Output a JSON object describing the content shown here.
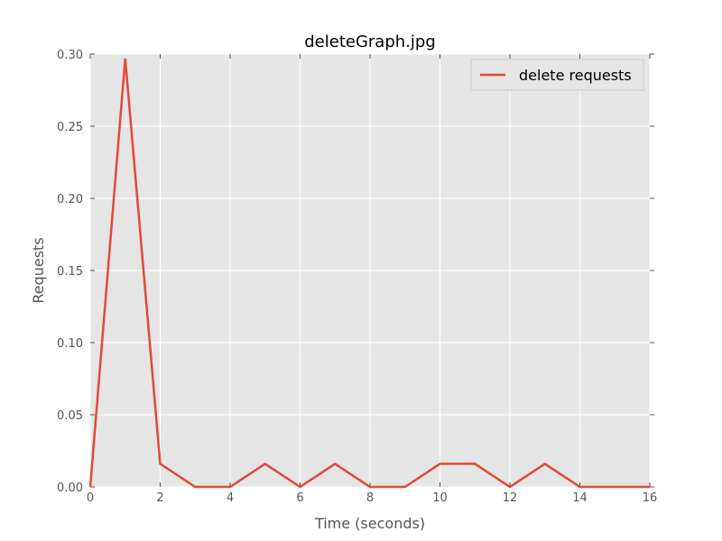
{
  "chart_data": {
    "type": "line",
    "title": "deleteGraph.jpg",
    "xlabel": "Time (seconds)",
    "ylabel": "Requests",
    "xlim": [
      0,
      16
    ],
    "ylim": [
      0,
      0.3
    ],
    "x_ticks": [
      "0",
      "2",
      "4",
      "6",
      "8",
      "10",
      "12",
      "14",
      "16"
    ],
    "y_ticks": [
      "0.00",
      "0.05",
      "0.10",
      "0.15",
      "0.20",
      "0.25",
      "0.30"
    ],
    "grid": true,
    "legend": {
      "position": "top-right"
    },
    "series": [
      {
        "name": "delete requests",
        "color": "#e24a33",
        "x": [
          0,
          1,
          2,
          3,
          4,
          5,
          6,
          7,
          8,
          9,
          10,
          11,
          12,
          13,
          14,
          15,
          16
        ],
        "y": [
          0,
          0.297,
          0.016,
          0,
          0,
          0.016,
          0,
          0.016,
          0,
          0,
          0.016,
          0.016,
          0,
          0.016,
          0,
          0,
          0
        ]
      }
    ]
  },
  "colors": {
    "plot_background": "#e5e5e5",
    "grid": "#ffffff"
  }
}
